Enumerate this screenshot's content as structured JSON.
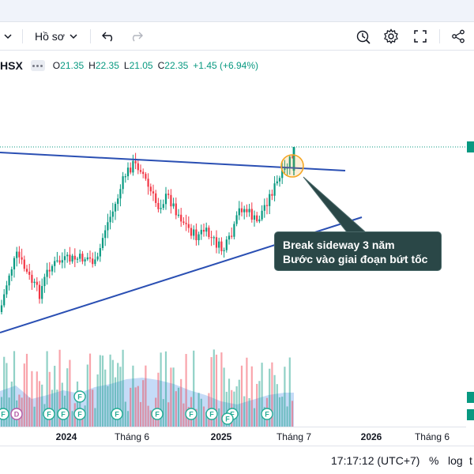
{
  "toolbar": {
    "profile_label": "Hồ sơ",
    "icons": [
      "chevron-down-icon",
      "undo-icon",
      "redo-icon",
      "alert-icon",
      "gear-icon",
      "fullscreen-icon",
      "share-icon"
    ]
  },
  "legend": {
    "symbol": "HSX",
    "open_label": "O",
    "open": "21.35",
    "high_label": "H",
    "high": "22.35",
    "low_label": "L",
    "low": "21.05",
    "close_label": "C",
    "close": "22.35",
    "change": "+1.45 (+6.94%)"
  },
  "annotation": {
    "line1": "Break sideway 3 năm",
    "line2": "Bước vào giai đoạn bứt tốc"
  },
  "events": [
    {
      "label": "F"
    },
    {
      "label": "D"
    },
    {
      "label": "F"
    },
    {
      "label": "F"
    },
    {
      "label": "F"
    },
    {
      "label": "F"
    },
    {
      "label": "F"
    },
    {
      "label": "F"
    },
    {
      "label": "F"
    },
    {
      "label": "F"
    },
    {
      "label": "F"
    },
    {
      "label": "F"
    },
    {
      "label": "F"
    }
  ],
  "x_axis": {
    "labels": [
      "2024",
      "Tháng 6",
      "2025",
      "Tháng 7",
      "2026",
      "Tháng 6"
    ]
  },
  "status_bar": {
    "time": "17:17:12 (UTC+7)",
    "percent": "%",
    "log": "log",
    "auto": "t"
  },
  "colors": {
    "up": "#089981",
    "down": "#f23645",
    "trendline": "#2a4fb3",
    "volume_area": "#a8c8f0",
    "callout_bg": "#2a4747",
    "breakout_circle": "#f5a623"
  },
  "chart_data": {
    "type": "candlestick",
    "x": [
      "2023-09",
      "2023-10",
      "2023-11",
      "2023-12",
      "2024-01",
      "2024-02",
      "2024-03",
      "2024-04",
      "2024-05",
      "2024-06",
      "2024-07",
      "2024-08",
      "2024-09",
      "2024-10",
      "2024-11",
      "2024-12",
      "2025-01",
      "2025-02",
      "2025-03",
      "2025-04",
      "2025-05",
      "2025-06",
      "2025-07"
    ],
    "close": [
      15.6,
      16.8,
      15.3,
      17.6,
      18.1,
      18.4,
      21.0,
      24.2,
      22.2,
      21.6,
      20.8,
      20.5,
      19.5,
      18.3,
      17.3,
      18.3,
      19.0,
      18.0,
      17.3,
      19.6,
      20.2,
      21.0,
      22.35
    ],
    "last": {
      "open": 21.35,
      "high": 22.35,
      "low": 21.05,
      "close": 22.35,
      "change": 1.45,
      "change_pct": 6.94
    },
    "trendlines": [
      "resistance",
      "support"
    ],
    "annotations": [
      "Break sideway 3 năm",
      "Bước vào giai đoạn bứt tốc"
    ],
    "x_ticks": [
      "2024",
      "Tháng 6",
      "2025",
      "Tháng 7",
      "2026",
      "Tháng 6"
    ]
  }
}
